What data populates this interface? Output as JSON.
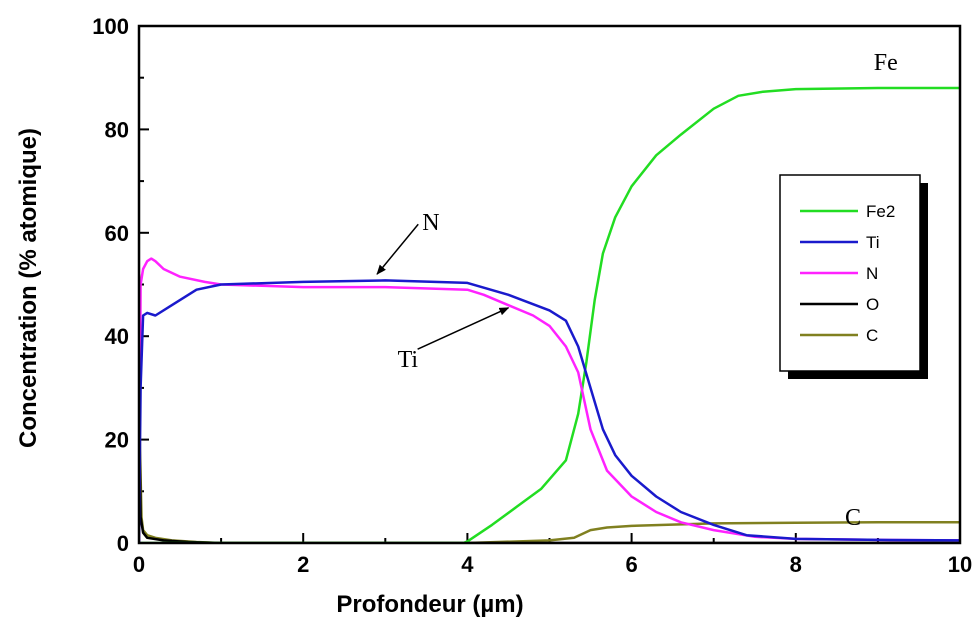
{
  "chart_data": {
    "type": "line",
    "xlabel": "Profondeur (µm)",
    "ylabel": "Concentration (% atomique)",
    "xlim": [
      0,
      10
    ],
    "ylim": [
      0,
      100
    ],
    "xticks": [
      "0",
      "2",
      "4",
      "6",
      "8",
      "10"
    ],
    "yticks": [
      "0",
      "20",
      "40",
      "60",
      "80",
      "100"
    ],
    "grid": false,
    "legend_position": "right",
    "series": [
      {
        "name": "Fe2",
        "color": "#22dd22",
        "x": [
          0,
          3.95,
          4.0,
          4.3,
          4.6,
          4.9,
          5.2,
          5.35,
          5.45,
          5.55,
          5.65,
          5.8,
          6.0,
          6.3,
          6.6,
          7.0,
          7.3,
          7.6,
          8.0,
          9.0,
          10.0
        ],
        "y": [
          0,
          0,
          0.3,
          3.5,
          7,
          10.5,
          16,
          25,
          35,
          47,
          56,
          63,
          69,
          75,
          79,
          84,
          86.5,
          87.3,
          87.8,
          88,
          88
        ]
      },
      {
        "name": "Ti",
        "color": "#1a1acc",
        "x": [
          0,
          0.02,
          0.05,
          0.1,
          0.2,
          0.4,
          0.7,
          1.0,
          2.0,
          3.0,
          4.0,
          4.5,
          5.0,
          5.2,
          5.35,
          5.5,
          5.65,
          5.8,
          6.0,
          6.3,
          6.6,
          7.0,
          7.4,
          8.0,
          9.0,
          10.0
        ],
        "y": [
          0,
          30,
          44,
          44.5,
          44,
          46,
          49,
          50,
          50.5,
          50.8,
          50.3,
          48,
          45,
          43,
          38,
          30,
          22,
          17,
          13,
          9,
          6,
          3.5,
          1.5,
          0.8,
          0.6,
          0.5
        ]
      },
      {
        "name": "N",
        "color": "#ff22ff",
        "x": [
          0,
          0.02,
          0.05,
          0.1,
          0.15,
          0.2,
          0.3,
          0.5,
          0.8,
          1.0,
          2.0,
          3.0,
          4.0,
          4.2,
          4.5,
          4.8,
          5.0,
          5.2,
          5.35,
          5.5,
          5.7,
          6.0,
          6.3,
          6.6,
          7.0,
          7.5,
          8.0,
          9.0,
          10.0
        ],
        "y": [
          0,
          50,
          53,
          54.5,
          55,
          54.5,
          53,
          51.5,
          50.5,
          50,
          49.5,
          49.5,
          49,
          48,
          46,
          44,
          42,
          38,
          33,
          22,
          14,
          9,
          6,
          4,
          2.5,
          1.2,
          0.8,
          0.6,
          0.5
        ]
      },
      {
        "name": "O",
        "color": "#000000",
        "x": [
          0,
          0.02,
          0.05,
          0.1,
          0.3,
          0.6,
          1.0,
          10.0
        ],
        "y": [
          30,
          5,
          2,
          1,
          0.5,
          0.2,
          0,
          0
        ]
      },
      {
        "name": "C",
        "color": "#808020",
        "x": [
          0,
          0.01,
          0.03,
          0.05,
          0.1,
          0.2,
          0.4,
          0.7,
          1.0,
          3.0,
          4.0,
          5.0,
          5.3,
          5.5,
          5.7,
          6.0,
          7.0,
          8.0,
          9.0,
          10.0
        ],
        "y": [
          52,
          20,
          5,
          2.5,
          1.5,
          1.0,
          0.5,
          0.2,
          0,
          0,
          0,
          0.5,
          1.0,
          2.5,
          3.0,
          3.3,
          3.8,
          3.9,
          4.0,
          4.0
        ]
      }
    ],
    "annotations": [
      {
        "text": "Fe",
        "x": 8.95,
        "y": 91.5
      },
      {
        "text": "N",
        "x": 3.45,
        "y": 60.5,
        "arrow_to": [
          2.9,
          52.0
        ]
      },
      {
        "text": "Ti",
        "x": 3.15,
        "y": 34.0,
        "arrow_to": [
          4.5,
          45.5
        ]
      },
      {
        "text": "C",
        "x": 8.6,
        "y": 3.5
      }
    ]
  }
}
